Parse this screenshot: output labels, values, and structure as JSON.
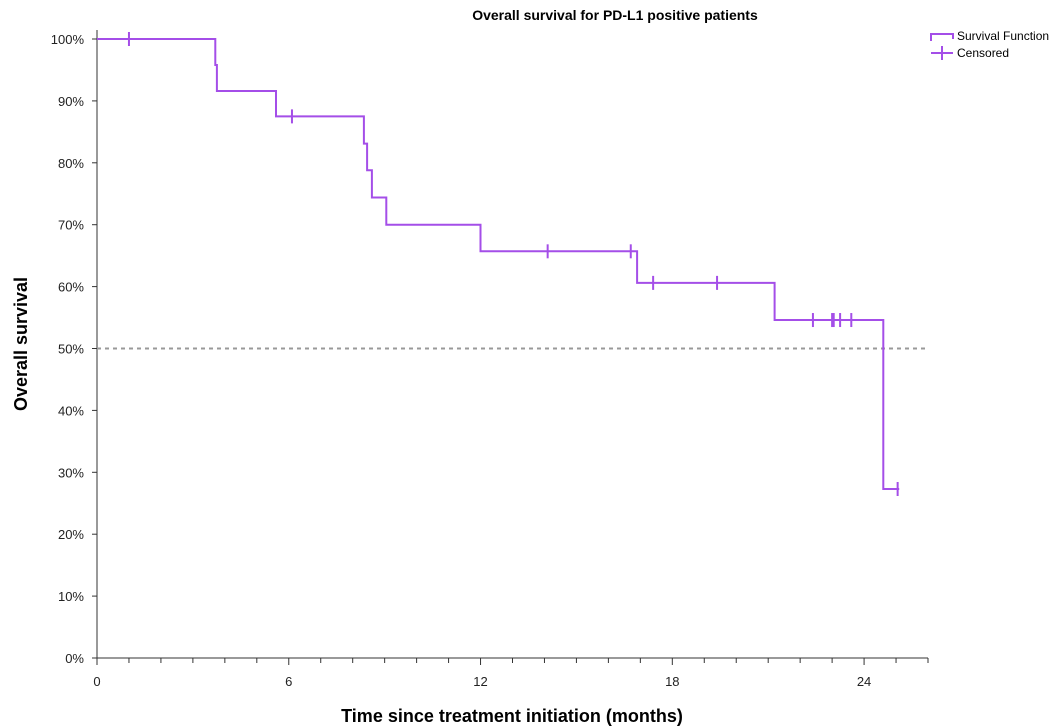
{
  "chart_data": {
    "type": "line",
    "subtype": "kaplan-meier step",
    "title": "Overall survival for PD-L1 positive patients",
    "xlabel": "Time since treatment initiation (months)",
    "ylabel": "Overall survival",
    "xlim": [
      0,
      26
    ],
    "ylim": [
      0,
      100
    ],
    "x_ticks": [
      0,
      6,
      12,
      18,
      24
    ],
    "y_ticks": [
      0,
      10,
      20,
      30,
      40,
      50,
      60,
      70,
      80,
      90,
      100
    ],
    "y_tick_labels": [
      "0%",
      "10%",
      "20%",
      "30%",
      "40%",
      "50%",
      "60%",
      "70%",
      "80%",
      "90%",
      "100%"
    ],
    "x_tick_labels": [
      "0",
      "6",
      "12",
      "18",
      "24"
    ],
    "series": [
      {
        "name": "Survival Function",
        "color": "#a44ee8",
        "steps": [
          [
            0,
            100
          ],
          [
            3.7,
            100
          ],
          [
            3.7,
            95.8
          ],
          [
            3.75,
            95.8
          ],
          [
            3.75,
            91.6
          ],
          [
            5.6,
            91.6
          ],
          [
            5.6,
            87.5
          ],
          [
            8.35,
            87.5
          ],
          [
            8.35,
            83.1
          ],
          [
            8.45,
            83.1
          ],
          [
            8.45,
            78.8
          ],
          [
            8.6,
            78.8
          ],
          [
            8.6,
            74.4
          ],
          [
            9.05,
            74.4
          ],
          [
            9.05,
            70.0
          ],
          [
            12.0,
            70.0
          ],
          [
            12.0,
            65.7
          ],
          [
            16.9,
            65.7
          ],
          [
            16.9,
            60.6
          ],
          [
            21.2,
            60.6
          ],
          [
            21.2,
            54.6
          ],
          [
            24.6,
            54.6
          ],
          [
            24.6,
            27.3
          ],
          [
            25.1,
            27.3
          ]
        ]
      },
      {
        "name": "Censored",
        "color": "#a44ee8",
        "points": [
          [
            1.0,
            100
          ],
          [
            6.1,
            87.5
          ],
          [
            14.1,
            65.7
          ],
          [
            16.7,
            65.7
          ],
          [
            17.4,
            60.6
          ],
          [
            19.4,
            60.6
          ],
          [
            22.4,
            54.6
          ],
          [
            23.0,
            54.6
          ],
          [
            23.05,
            54.6
          ],
          [
            23.25,
            54.6
          ],
          [
            23.6,
            54.6
          ],
          [
            25.05,
            27.3
          ]
        ]
      }
    ],
    "reference_line": {
      "y": 50,
      "style": "dashed",
      "color": "#999999"
    },
    "legend": {
      "placement": "top-right",
      "entries": [
        "Survival Function",
        "Censored"
      ]
    },
    "grid": false
  }
}
